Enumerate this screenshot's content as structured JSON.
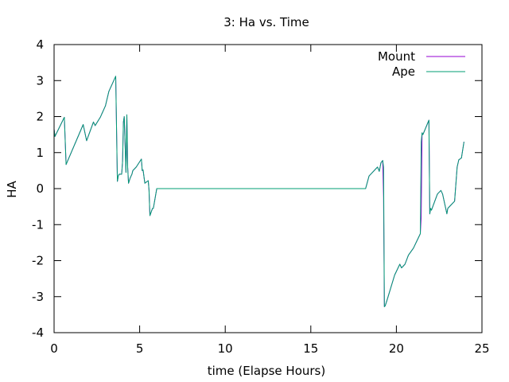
{
  "chart_data": {
    "type": "line",
    "title": "3: Ha vs. Time",
    "xlabel": "time (Elapse Hours)",
    "ylabel": "HA",
    "xlim": [
      0,
      25
    ],
    "ylim": [
      -4,
      4
    ],
    "xticks": [
      0,
      5,
      10,
      15,
      20,
      25
    ],
    "yticks": [
      -4,
      -3,
      -2,
      -1,
      0,
      1,
      2,
      3,
      4
    ],
    "legend_position": "top-right",
    "series": [
      {
        "name": "Mount",
        "color": "#9400d3",
        "x": [
          0,
          0.05,
          0.6,
          0.7,
          1.7,
          1.9,
          2.3,
          2.4,
          2.7,
          3.0,
          3.2,
          3.6,
          3.7,
          3.75,
          3.8,
          3.95,
          4.0,
          4.05,
          4.1,
          4.2,
          4.25,
          4.3,
          4.35,
          4.45,
          4.5,
          4.55,
          4.6,
          4.8,
          5.1,
          5.15,
          5.2,
          5.3,
          5.5,
          5.55,
          5.6,
          5.75,
          5.8,
          6.0,
          6.05,
          6.1,
          18.2,
          18.4,
          18.9,
          19.0,
          19.1,
          19.2,
          19.25,
          19.3,
          19.35,
          19.45,
          19.9,
          20.2,
          20.3,
          20.5,
          20.7,
          21.0,
          21.4,
          21.45,
          21.5,
          21.55,
          21.9,
          21.95,
          22.0,
          22.05,
          22.4,
          22.6,
          22.7,
          22.95,
          23.0,
          23.4,
          23.55,
          23.65,
          23.8,
          23.95
        ],
        "y": [
          1.65,
          1.45,
          1.98,
          0.67,
          1.78,
          1.33,
          1.85,
          1.75,
          1.98,
          2.3,
          2.7,
          3.12,
          0.2,
          0.35,
          0.4,
          0.4,
          0.75,
          1.85,
          2.0,
          0.45,
          2.05,
          0.6,
          0.15,
          0.3,
          0.35,
          0.4,
          0.5,
          0.6,
          0.82,
          0.5,
          0.52,
          0.15,
          0.22,
          -0.05,
          -0.75,
          -0.55,
          -0.55,
          0.0,
          0.0,
          0.0,
          0.0,
          0.35,
          0.6,
          0.48,
          0.72,
          0.78,
          -0.25,
          -3.28,
          -3.25,
          -3.1,
          -2.4,
          -2.1,
          -2.2,
          -2.1,
          -1.85,
          -1.65,
          -1.25,
          -0.8,
          1.55,
          1.5,
          1.9,
          -0.7,
          -0.55,
          -0.6,
          -0.15,
          -0.05,
          -0.15,
          -0.7,
          -0.55,
          -0.35,
          0.6,
          0.8,
          0.85,
          1.3
        ],
        "label": "Mount"
      },
      {
        "name": "Ape",
        "color": "#009e73",
        "x": [
          0,
          0.05,
          0.6,
          0.7,
          1.7,
          1.9,
          2.3,
          2.4,
          2.7,
          3.0,
          3.2,
          3.6,
          3.7,
          3.75,
          3.8,
          3.95,
          4.0,
          4.05,
          4.1,
          4.2,
          4.25,
          4.3,
          4.35,
          4.45,
          4.5,
          4.55,
          4.6,
          4.8,
          5.1,
          5.15,
          5.2,
          5.3,
          5.5,
          5.55,
          5.6,
          5.75,
          5.8,
          6.0,
          6.05,
          6.1,
          18.2,
          18.4,
          18.9,
          19.0,
          19.1,
          19.2,
          19.25,
          19.3,
          19.35,
          19.45,
          19.9,
          20.2,
          20.3,
          20.5,
          20.7,
          21.0,
          21.4,
          21.45,
          21.5,
          21.55,
          21.9,
          21.95,
          22.0,
          22.05,
          22.4,
          22.6,
          22.7,
          22.95,
          23.0,
          23.4,
          23.55,
          23.65,
          23.8,
          23.95
        ],
        "y": [
          1.65,
          1.45,
          1.98,
          0.67,
          1.78,
          1.33,
          1.85,
          1.75,
          1.98,
          2.3,
          2.7,
          3.12,
          0.2,
          0.35,
          0.4,
          0.4,
          0.75,
          1.85,
          2.0,
          0.45,
          2.05,
          0.6,
          0.15,
          0.3,
          0.35,
          0.4,
          0.5,
          0.6,
          0.82,
          0.5,
          0.52,
          0.15,
          0.22,
          -0.05,
          -0.75,
          -0.55,
          -0.55,
          0.0,
          0.0,
          0.0,
          0.0,
          0.35,
          0.6,
          0.48,
          0.72,
          0.78,
          0.6,
          -3.28,
          -3.25,
          -3.1,
          -2.4,
          -2.1,
          -2.2,
          -2.1,
          -1.85,
          -1.65,
          -1.25,
          1.3,
          1.55,
          1.5,
          1.9,
          -0.7,
          -0.55,
          -0.6,
          -0.15,
          -0.05,
          -0.15,
          -0.7,
          -0.55,
          -0.35,
          0.6,
          0.8,
          0.85,
          1.3
        ]
      }
    ]
  }
}
